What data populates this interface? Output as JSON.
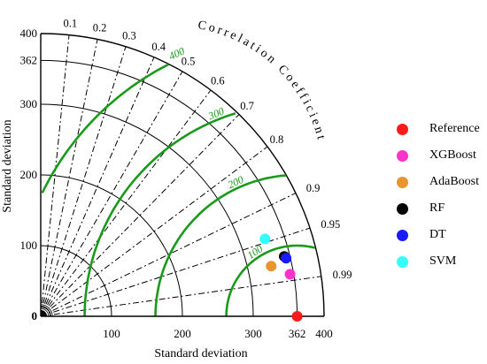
{
  "chart_data": {
    "type": "taylor-diagram",
    "xlabel": "Standard deviation",
    "ylabel": "Standard deviation",
    "arc_label": "Correlation Coefficient",
    "std_ticks": [
      "0",
      "100",
      "200",
      "300",
      "362",
      "400"
    ],
    "x_std_ticks": [
      "100",
      "200",
      "300",
      "362",
      "400"
    ],
    "y_std_ticks": [
      "0",
      "100",
      "200",
      "300",
      "362",
      "400"
    ],
    "std_max": 400,
    "reference_std": 362,
    "correlation_ticks": [
      "0.1",
      "0.2",
      "0.3",
      "0.4",
      "0.5",
      "0.6",
      "0.7",
      "0.8",
      "0.9",
      "0.95",
      "0.99"
    ],
    "rms_labels": [
      "100",
      "200",
      "300",
      "400"
    ],
    "models": [
      {
        "name": "Reference",
        "std": 362,
        "corr": 1.0,
        "color": "#ff1a1a"
      },
      {
        "name": "XGBoost",
        "std": 357,
        "corr": 0.986,
        "color": "#ff33cc"
      },
      {
        "name": "AdaBoost",
        "std": 333,
        "corr": 0.977,
        "color": "#e8952e"
      },
      {
        "name": "RF",
        "std": 354,
        "corr": 0.971,
        "color": "#000000"
      },
      {
        "name": "DT",
        "std": 356,
        "corr": 0.973,
        "color": "#1a1aff"
      },
      {
        "name": "SVM",
        "std": 335,
        "corr": 0.945,
        "color": "#33ffff"
      }
    ]
  }
}
